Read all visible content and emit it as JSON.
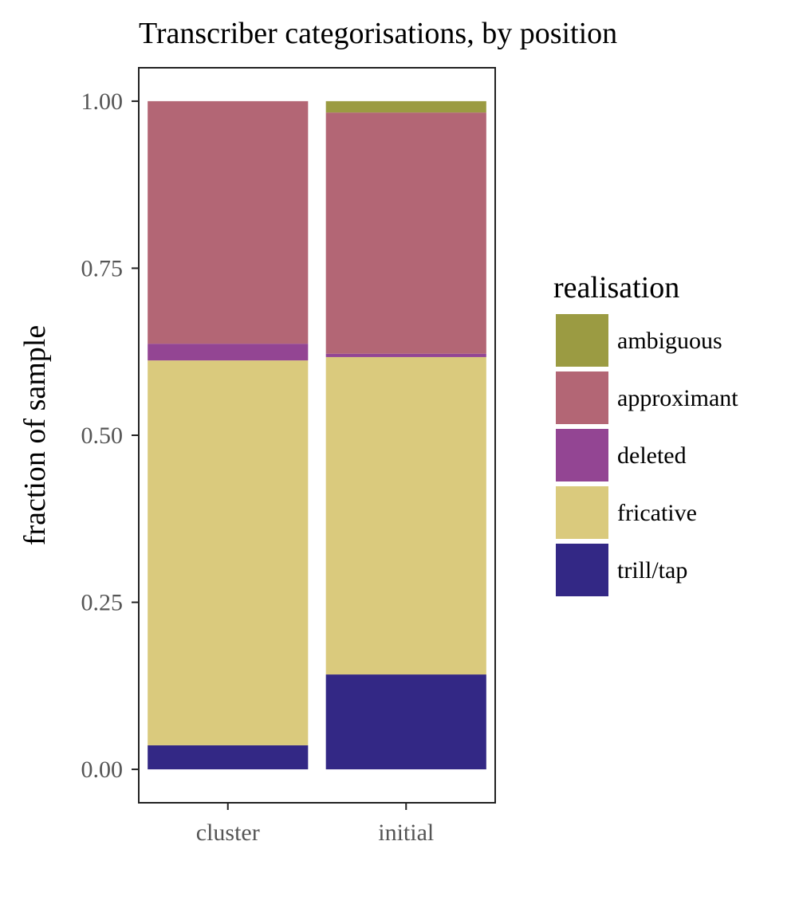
{
  "chart_data": {
    "type": "bar",
    "stacked": true,
    "title": "Transcriber categorisations, by position",
    "xlabel": "",
    "ylabel": "fraction of sample",
    "ylim": [
      -0.05,
      1.05
    ],
    "yticks": [
      "0.00",
      "0.25",
      "0.50",
      "0.75",
      "1.00"
    ],
    "categories": [
      "cluster",
      "initial"
    ],
    "series": [
      {
        "name": "trill/tap",
        "color": "#332885",
        "values": [
          0.036,
          0.142
        ]
      },
      {
        "name": "fricative",
        "color": "#DACA7D",
        "values": [
          0.576,
          0.475
        ]
      },
      {
        "name": "deleted",
        "color": "#934593",
        "values": [
          0.025,
          0.005
        ]
      },
      {
        "name": "approximant",
        "color": "#B36675",
        "values": [
          0.363,
          0.361
        ]
      },
      {
        "name": "ambiguous",
        "color": "#9B9B42",
        "values": [
          0.0,
          0.017
        ]
      }
    ],
    "legend": {
      "title": "realisation",
      "position": "right",
      "order": [
        "ambiguous",
        "approximant",
        "deleted",
        "fricative",
        "trill/tap"
      ]
    },
    "grid": false
  }
}
